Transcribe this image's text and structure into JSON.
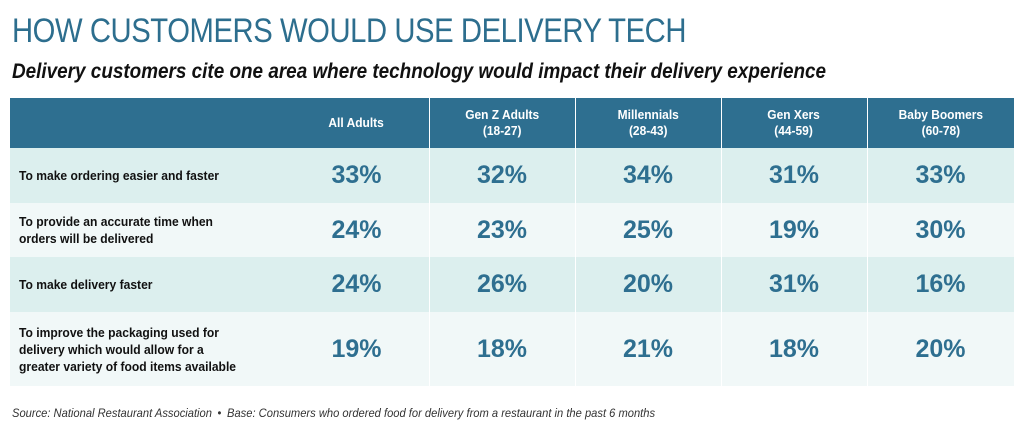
{
  "title": "HOW CUSTOMERS WOULD USE DELIVERY TECH",
  "subtitle": "Delivery customers cite one area where technology would impact their delivery experience",
  "footer": {
    "source": "Source: National Restaurant Association",
    "bullet": "•",
    "base": "Base: Consumers who ordered food for delivery from a restaurant in the past 6 months"
  },
  "colors": {
    "header_bg": "#2e6f90",
    "value_text": "#2e6f90",
    "row_alt_a": "#dcefee",
    "row_alt_b": "#f1f8f8"
  },
  "chart_data": {
    "type": "table",
    "title": "HOW CUSTOMERS WOULD USE DELIVERY TECH",
    "subtitle": "Delivery customers cite one area where technology would impact their delivery experience",
    "columns": [
      {
        "line1": "All Adults",
        "line2": ""
      },
      {
        "line1": "Gen Z Adults",
        "line2": "(18-27)"
      },
      {
        "line1": "Millennials",
        "line2": "(28-43)"
      },
      {
        "line1": "Gen Xers",
        "line2": "(44-59)"
      },
      {
        "line1": "Baby Boomers",
        "line2": "(60-78)"
      }
    ],
    "rows": [
      {
        "label_lines": [
          "To make ordering easier and faster"
        ],
        "values": [
          "33%",
          "32%",
          "34%",
          "31%",
          "33%"
        ]
      },
      {
        "label_lines": [
          "To provide an accurate time when",
          "orders will be delivered"
        ],
        "values": [
          "24%",
          "23%",
          "25%",
          "19%",
          "30%"
        ]
      },
      {
        "label_lines": [
          "To make delivery faster"
        ],
        "values": [
          "24%",
          "26%",
          "20%",
          "31%",
          "16%"
        ]
      },
      {
        "label_lines": [
          "To improve the packaging used for",
          "delivery which would allow for a",
          "greater variety of food items available"
        ],
        "values": [
          "19%",
          "18%",
          "21%",
          "18%",
          "20%"
        ]
      }
    ]
  }
}
